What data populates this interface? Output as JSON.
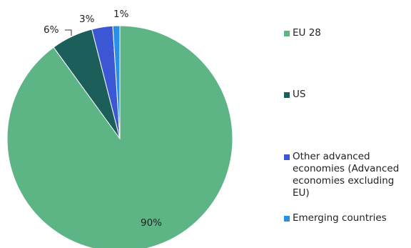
{
  "chart_data": {
    "type": "pie",
    "categories": [
      "EU 28",
      "US",
      "Other advanced economies (Advanced economies excluding EU)",
      "Emerging countries"
    ],
    "values": [
      90,
      6,
      3,
      1
    ],
    "data_labels": [
      "90%",
      "6%",
      "3%",
      "1%"
    ],
    "colors": [
      "#5db585",
      "#1b5e5a",
      "#3b57d6",
      "#2a8fe6"
    ],
    "legend_position": "right",
    "start_angle_deg": 0,
    "direction": "clockwise"
  }
}
